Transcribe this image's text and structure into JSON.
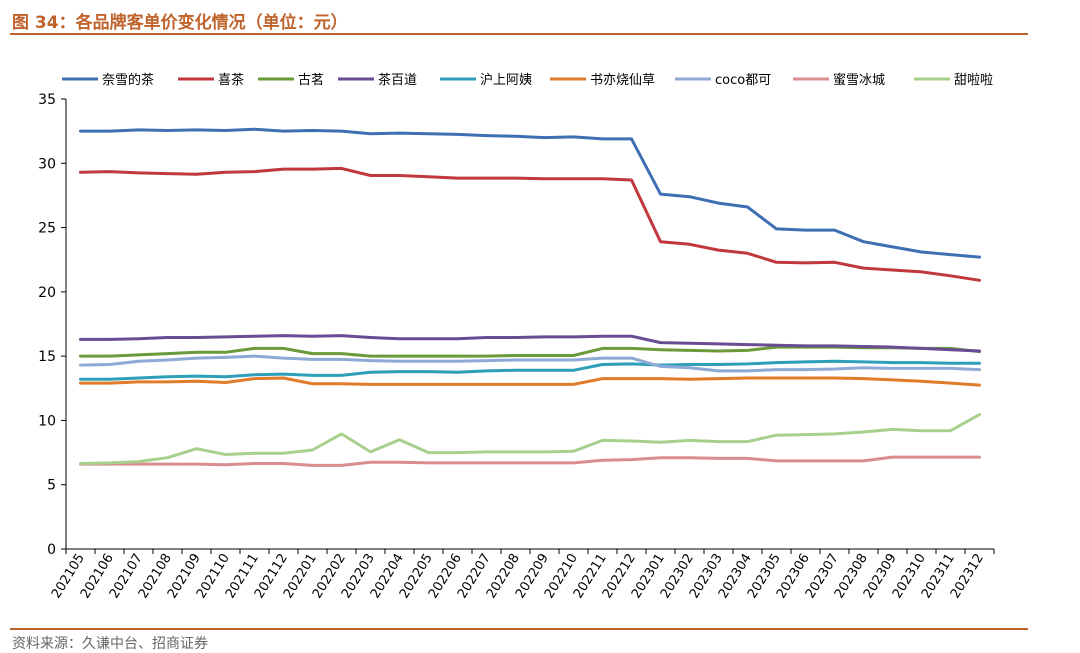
{
  "figure": {
    "title": "图 34：各品牌客单价变化情况（单位：元）",
    "source": "资料来源：久谦中台、招商证券"
  },
  "chart_data": {
    "type": "line",
    "title": "",
    "xlabel": "",
    "ylabel": "",
    "ylim": [
      0,
      35
    ],
    "yticks": [
      0,
      5,
      10,
      15,
      20,
      25,
      30,
      35
    ],
    "grid": false,
    "legend_position": "top",
    "x": [
      "202105",
      "202106",
      "202107",
      "202108",
      "202109",
      "202110",
      "202111",
      "202112",
      "202201",
      "202202",
      "202203",
      "202204",
      "202205",
      "202206",
      "202207",
      "202208",
      "202209",
      "202210",
      "202211",
      "202212",
      "202301",
      "202302",
      "202303",
      "202304",
      "202305",
      "202306",
      "202307",
      "202308",
      "202309",
      "202310",
      "202311",
      "202312"
    ],
    "series": [
      {
        "name": "奈雪的茶",
        "color": "#3f6fb3",
        "values": [
          32.5,
          32.5,
          32.6,
          32.55,
          32.6,
          32.55,
          32.65,
          32.5,
          32.55,
          32.5,
          32.3,
          32.35,
          32.3,
          32.25,
          32.15,
          32.1,
          32.0,
          32.05,
          31.9,
          31.9,
          27.6,
          27.4,
          26.9,
          26.6,
          24.9,
          24.8,
          24.8,
          23.9,
          23.5,
          23.1,
          22.9,
          22.7
        ]
      },
      {
        "name": "喜茶",
        "color": "#c0383c",
        "values": [
          29.3,
          29.35,
          29.25,
          29.2,
          29.15,
          29.3,
          29.35,
          29.55,
          29.55,
          29.6,
          29.05,
          29.05,
          28.95,
          28.85,
          28.85,
          28.85,
          28.8,
          28.8,
          28.8,
          28.7,
          23.9,
          23.7,
          23.25,
          23.0,
          22.3,
          22.25,
          22.3,
          21.85,
          21.7,
          21.55,
          21.25,
          20.9
        ]
      },
      {
        "name": "古茗",
        "color": "#6a9a3a",
        "values": [
          15.0,
          15.0,
          15.1,
          15.2,
          15.3,
          15.3,
          15.6,
          15.6,
          15.2,
          15.2,
          15.0,
          15.0,
          15.0,
          15.0,
          15.0,
          15.05,
          15.05,
          15.05,
          15.6,
          15.6,
          15.5,
          15.45,
          15.4,
          15.45,
          15.7,
          15.7,
          15.7,
          15.65,
          15.65,
          15.6,
          15.6,
          15.35
        ]
      },
      {
        "name": "茶百道",
        "color": "#6a4c93",
        "values": [
          16.3,
          16.3,
          16.35,
          16.45,
          16.45,
          16.5,
          16.55,
          16.6,
          16.55,
          16.6,
          16.45,
          16.35,
          16.35,
          16.35,
          16.45,
          16.45,
          16.5,
          16.5,
          16.55,
          16.55,
          16.05,
          16.0,
          15.95,
          15.9,
          15.85,
          15.8,
          15.8,
          15.75,
          15.7,
          15.6,
          15.5,
          15.4
        ]
      },
      {
        "name": "沪上阿姨",
        "color": "#2e9fb8",
        "values": [
          13.2,
          13.2,
          13.3,
          13.4,
          13.45,
          13.4,
          13.55,
          13.6,
          13.5,
          13.5,
          13.75,
          13.8,
          13.8,
          13.75,
          13.85,
          13.9,
          13.9,
          13.9,
          14.35,
          14.4,
          14.3,
          14.35,
          14.35,
          14.4,
          14.5,
          14.55,
          14.6,
          14.55,
          14.5,
          14.5,
          14.45,
          14.45
        ]
      },
      {
        "name": "书亦烧仙草",
        "color": "#e07b2a",
        "values": [
          12.9,
          12.9,
          13.0,
          13.0,
          13.05,
          12.95,
          13.25,
          13.3,
          12.85,
          12.85,
          12.8,
          12.8,
          12.8,
          12.8,
          12.8,
          12.8,
          12.8,
          12.8,
          13.25,
          13.25,
          13.25,
          13.2,
          13.25,
          13.3,
          13.3,
          13.3,
          13.3,
          13.25,
          13.15,
          13.05,
          12.9,
          12.75
        ]
      },
      {
        "name": "coco都可",
        "color": "#8fa9d6",
        "values": [
          14.3,
          14.35,
          14.6,
          14.7,
          14.85,
          14.9,
          15.0,
          14.85,
          14.75,
          14.75,
          14.65,
          14.6,
          14.6,
          14.6,
          14.65,
          14.7,
          14.7,
          14.7,
          14.85,
          14.85,
          14.2,
          14.1,
          13.85,
          13.85,
          13.95,
          13.95,
          14.0,
          14.1,
          14.05,
          14.05,
          14.05,
          13.95
        ]
      },
      {
        "name": "蜜雪冰城",
        "color": "#d98d90",
        "values": [
          6.6,
          6.6,
          6.6,
          6.6,
          6.6,
          6.55,
          6.65,
          6.65,
          6.5,
          6.5,
          6.75,
          6.75,
          6.7,
          6.7,
          6.7,
          6.7,
          6.7,
          6.7,
          6.9,
          6.95,
          7.1,
          7.1,
          7.05,
          7.05,
          6.85,
          6.85,
          6.85,
          6.85,
          7.15,
          7.15,
          7.15,
          7.15
        ]
      },
      {
        "name": "甜啦啦",
        "color": "#a8d08d",
        "values": [
          6.65,
          6.7,
          6.8,
          7.1,
          7.8,
          7.35,
          7.45,
          7.45,
          7.7,
          8.95,
          7.55,
          8.5,
          7.5,
          7.5,
          7.55,
          7.55,
          7.55,
          7.6,
          8.45,
          8.4,
          8.3,
          8.45,
          8.35,
          8.35,
          8.85,
          8.9,
          8.95,
          9.1,
          9.3,
          9.2,
          9.2,
          10.45
        ]
      }
    ]
  }
}
